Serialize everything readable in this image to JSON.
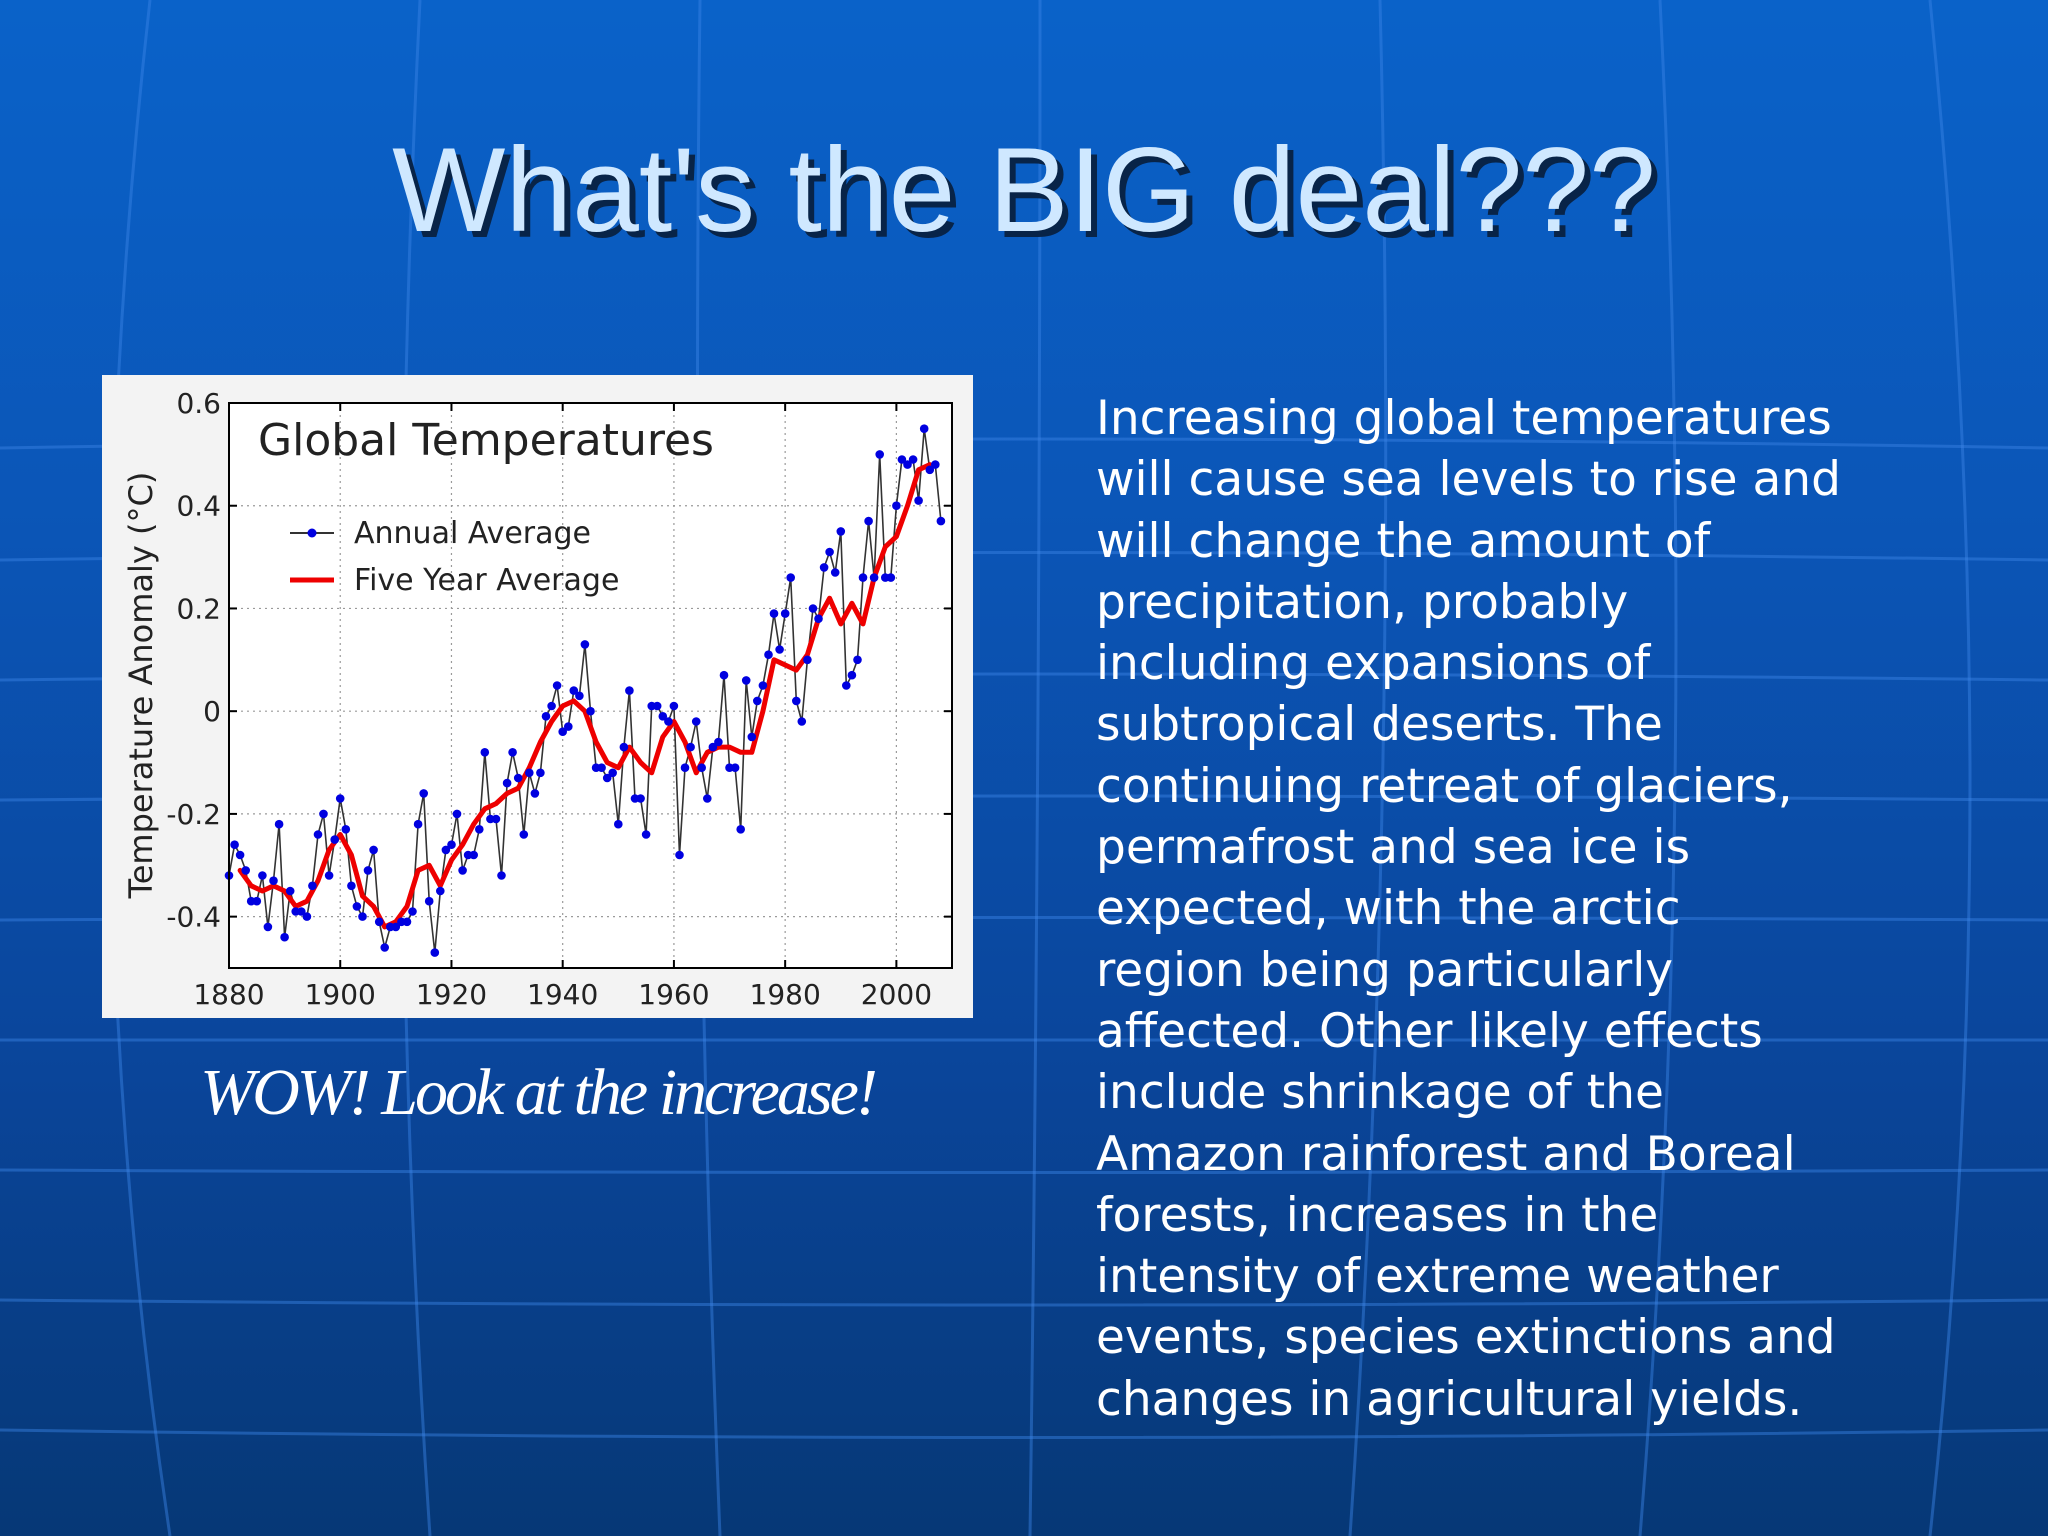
{
  "slide": {
    "title": "What's the BIG deal???",
    "caption": "WOW! Look at the increase!",
    "body": "Increasing global temperatures\nwill cause sea levels to rise and\nwill change the amount of\nprecipitation, probably\nincluding expansions of\nsubtropical deserts.  The\ncontinuing retreat of glaciers,\npermafrost and sea ice is\nexpected, with the arctic\nregion being particularly\naffected.  Other likely effects\ninclude shrinkage of the\nAmazon rainforest and Boreal\nforests, increases in the\nintensity of extreme weather\nevents, species extinctions and\nchanges in agricultural yields."
  },
  "colors": {
    "annual": "#0000e0",
    "five_year": "#ee0000",
    "title_text": "#cfe8ff",
    "slide_blue": "#0a5bc0"
  },
  "chart_data": {
    "type": "line",
    "title": "Global Temperatures",
    "xlabel": "",
    "ylabel": "Temperature Anomaly (°C)",
    "xlim": [
      1880,
      2010
    ],
    "ylim": [
      -0.5,
      0.6
    ],
    "xticks": [
      1880,
      1900,
      1920,
      1940,
      1960,
      1980,
      2000
    ],
    "yticks": [
      -0.4,
      -0.2,
      0,
      0.2,
      0.4,
      0.6
    ],
    "xtick_labels": [
      "1880",
      "1900",
      "1920",
      "1940",
      "1960",
      "1980",
      "2000"
    ],
    "ytick_labels": [
      "-0.4",
      "-0.2",
      "0",
      "0.2",
      "0.4",
      "0.6"
    ],
    "grid": true,
    "legend_position": "top-left",
    "series": [
      {
        "name": "Annual Average",
        "style": "line-with-points",
        "x": [
          1880,
          1881,
          1882,
          1883,
          1884,
          1885,
          1886,
          1887,
          1888,
          1889,
          1890,
          1891,
          1892,
          1893,
          1894,
          1895,
          1896,
          1897,
          1898,
          1899,
          1900,
          1901,
          1902,
          1903,
          1904,
          1905,
          1906,
          1907,
          1908,
          1909,
          1910,
          1911,
          1912,
          1913,
          1914,
          1915,
          1916,
          1917,
          1918,
          1919,
          1920,
          1921,
          1922,
          1923,
          1924,
          1925,
          1926,
          1927,
          1928,
          1929,
          1930,
          1931,
          1932,
          1933,
          1934,
          1935,
          1936,
          1937,
          1938,
          1939,
          1940,
          1941,
          1942,
          1943,
          1944,
          1945,
          1946,
          1947,
          1948,
          1949,
          1950,
          1951,
          1952,
          1953,
          1954,
          1955,
          1956,
          1957,
          1958,
          1959,
          1960,
          1961,
          1962,
          1963,
          1964,
          1965,
          1966,
          1967,
          1968,
          1969,
          1970,
          1971,
          1972,
          1973,
          1974,
          1975,
          1976,
          1977,
          1978,
          1979,
          1980,
          1981,
          1982,
          1983,
          1984,
          1985,
          1986,
          1987,
          1988,
          1989,
          1990,
          1991,
          1992,
          1993,
          1994,
          1995,
          1996,
          1997,
          1998,
          1999,
          2000,
          2001,
          2002,
          2003,
          2004,
          2005,
          2006,
          2007,
          2008
        ],
        "values": [
          -0.32,
          -0.26,
          -0.28,
          -0.31,
          -0.37,
          -0.37,
          -0.32,
          -0.42,
          -0.33,
          -0.22,
          -0.44,
          -0.35,
          -0.39,
          -0.39,
          -0.4,
          -0.34,
          -0.24,
          -0.2,
          -0.32,
          -0.25,
          -0.17,
          -0.23,
          -0.34,
          -0.38,
          -0.4,
          -0.31,
          -0.27,
          -0.41,
          -0.46,
          -0.42,
          -0.42,
          -0.41,
          -0.41,
          -0.39,
          -0.22,
          -0.16,
          -0.37,
          -0.47,
          -0.35,
          -0.27,
          -0.26,
          -0.2,
          -0.31,
          -0.28,
          -0.28,
          -0.23,
          -0.08,
          -0.21,
          -0.21,
          -0.32,
          -0.14,
          -0.08,
          -0.13,
          -0.24,
          -0.12,
          -0.16,
          -0.12,
          -0.01,
          0.01,
          0.05,
          -0.04,
          -0.03,
          0.04,
          0.03,
          0.13,
          0.0,
          -0.11,
          -0.11,
          -0.13,
          -0.12,
          -0.22,
          -0.07,
          0.04,
          -0.17,
          -0.17,
          -0.24,
          0.01,
          0.01,
          -0.01,
          -0.02,
          0.01,
          -0.28,
          -0.11,
          -0.07,
          -0.02,
          -0.11,
          -0.17,
          -0.07,
          -0.06,
          0.07,
          -0.11,
          -0.11,
          -0.23,
          0.06,
          -0.05,
          0.02,
          0.05,
          0.11,
          0.19,
          0.12,
          0.19,
          0.26,
          0.02,
          -0.02,
          0.1,
          0.2,
          0.18,
          0.28,
          0.31,
          0.27,
          0.35,
          0.05,
          0.07,
          0.1,
          0.26,
          0.37,
          0.26,
          0.5,
          0.26,
          0.26,
          0.4,
          0.49,
          0.48,
          0.49,
          0.41,
          0.55,
          0.47,
          0.48,
          0.37
        ]
      },
      {
        "name": "Five Year Average",
        "style": "line",
        "x": [
          1882,
          1884,
          1886,
          1888,
          1890,
          1892,
          1894,
          1896,
          1898,
          1900,
          1902,
          1904,
          1906,
          1908,
          1910,
          1912,
          1914,
          1916,
          1918,
          1920,
          1922,
          1924,
          1926,
          1928,
          1930,
          1932,
          1934,
          1936,
          1938,
          1940,
          1942,
          1944,
          1946,
          1948,
          1950,
          1952,
          1954,
          1956,
          1958,
          1960,
          1962,
          1964,
          1966,
          1968,
          1970,
          1972,
          1974,
          1976,
          1978,
          1980,
          1982,
          1984,
          1986,
          1988,
          1990,
          1992,
          1994,
          1996,
          1998,
          2000,
          2002,
          2004,
          2006
        ],
        "values": [
          -0.31,
          -0.34,
          -0.35,
          -0.34,
          -0.35,
          -0.38,
          -0.37,
          -0.33,
          -0.27,
          -0.24,
          -0.28,
          -0.36,
          -0.38,
          -0.42,
          -0.41,
          -0.38,
          -0.31,
          -0.3,
          -0.34,
          -0.29,
          -0.26,
          -0.22,
          -0.19,
          -0.18,
          -0.16,
          -0.15,
          -0.11,
          -0.06,
          -0.02,
          0.01,
          0.02,
          0.0,
          -0.06,
          -0.1,
          -0.11,
          -0.07,
          -0.1,
          -0.12,
          -0.05,
          -0.02,
          -0.06,
          -0.12,
          -0.08,
          -0.07,
          -0.07,
          -0.08,
          -0.08,
          0.0,
          0.1,
          0.09,
          0.08,
          0.11,
          0.18,
          0.22,
          0.17,
          0.21,
          0.17,
          0.26,
          0.32,
          0.34,
          0.4,
          0.47,
          0.48
        ]
      }
    ]
  }
}
